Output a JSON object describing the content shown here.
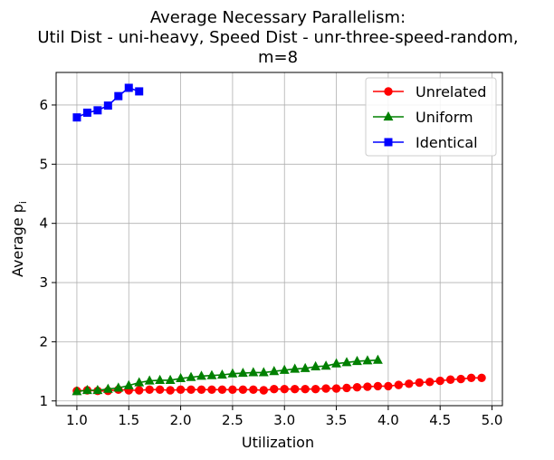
{
  "chart_data": {
    "type": "line",
    "title_lines": [
      "Average Necessary Parallelism:",
      "Util Dist - uni-heavy, Speed Dist - unr-three-speed-random,",
      "m=8"
    ],
    "xlabel": "Utilization",
    "ylabel": "Average p",
    "ylabel_subscript": "i",
    "xlim": [
      0.8,
      5.1
    ],
    "ylim": [
      0.92,
      6.55
    ],
    "xticks": [
      1.0,
      1.5,
      2.0,
      2.5,
      3.0,
      3.5,
      4.0,
      4.5,
      5.0
    ],
    "xtick_labels": [
      "1.0",
      "1.5",
      "2.0",
      "2.5",
      "3.0",
      "3.5",
      "4.0",
      "4.5",
      "5.0"
    ],
    "yticks": [
      1,
      2,
      3,
      4,
      5,
      6
    ],
    "ytick_labels": [
      "1",
      "2",
      "3",
      "4",
      "5",
      "6"
    ],
    "grid": true,
    "legend_position": "top-right",
    "series": [
      {
        "name": "Unrelated",
        "color": "#ff0000",
        "marker": "circle",
        "x": [
          1.0,
          1.1,
          1.2,
          1.3,
          1.4,
          1.5,
          1.6,
          1.7,
          1.8,
          1.9,
          2.0,
          2.1,
          2.2,
          2.3,
          2.4,
          2.5,
          2.6,
          2.7,
          2.8,
          2.9,
          3.0,
          3.1,
          3.2,
          3.3,
          3.4,
          3.5,
          3.6,
          3.7,
          3.8,
          3.9,
          4.0,
          4.1,
          4.2,
          4.3,
          4.4,
          4.5,
          4.6,
          4.7,
          4.8,
          4.9
        ],
        "y": [
          1.17,
          1.18,
          1.17,
          1.17,
          1.19,
          1.18,
          1.18,
          1.19,
          1.19,
          1.18,
          1.19,
          1.19,
          1.19,
          1.19,
          1.19,
          1.19,
          1.19,
          1.19,
          1.18,
          1.2,
          1.2,
          1.2,
          1.2,
          1.2,
          1.21,
          1.21,
          1.22,
          1.23,
          1.24,
          1.25,
          1.25,
          1.27,
          1.29,
          1.31,
          1.32,
          1.34,
          1.36,
          1.37,
          1.39,
          1.39
        ]
      },
      {
        "name": "Uniform",
        "color": "#008000",
        "marker": "triangle",
        "x": [
          1.0,
          1.1,
          1.2,
          1.3,
          1.4,
          1.5,
          1.6,
          1.7,
          1.8,
          1.9,
          2.0,
          2.1,
          2.2,
          2.3,
          2.4,
          2.5,
          2.6,
          2.7,
          2.8,
          2.9,
          3.0,
          3.1,
          3.2,
          3.3,
          3.4,
          3.5,
          3.6,
          3.7,
          3.8,
          3.9
        ],
        "y": [
          1.16,
          1.18,
          1.18,
          1.2,
          1.22,
          1.26,
          1.31,
          1.34,
          1.35,
          1.35,
          1.38,
          1.4,
          1.42,
          1.43,
          1.44,
          1.46,
          1.47,
          1.48,
          1.48,
          1.5,
          1.52,
          1.54,
          1.55,
          1.58,
          1.59,
          1.63,
          1.65,
          1.67,
          1.68,
          1.69
        ]
      },
      {
        "name": "Identical",
        "color": "#0000ff",
        "marker": "square",
        "x": [
          1.0,
          1.1,
          1.2,
          1.3,
          1.4,
          1.5,
          1.6
        ],
        "y": [
          5.79,
          5.87,
          5.91,
          5.99,
          6.15,
          6.29,
          6.23
        ]
      }
    ]
  }
}
